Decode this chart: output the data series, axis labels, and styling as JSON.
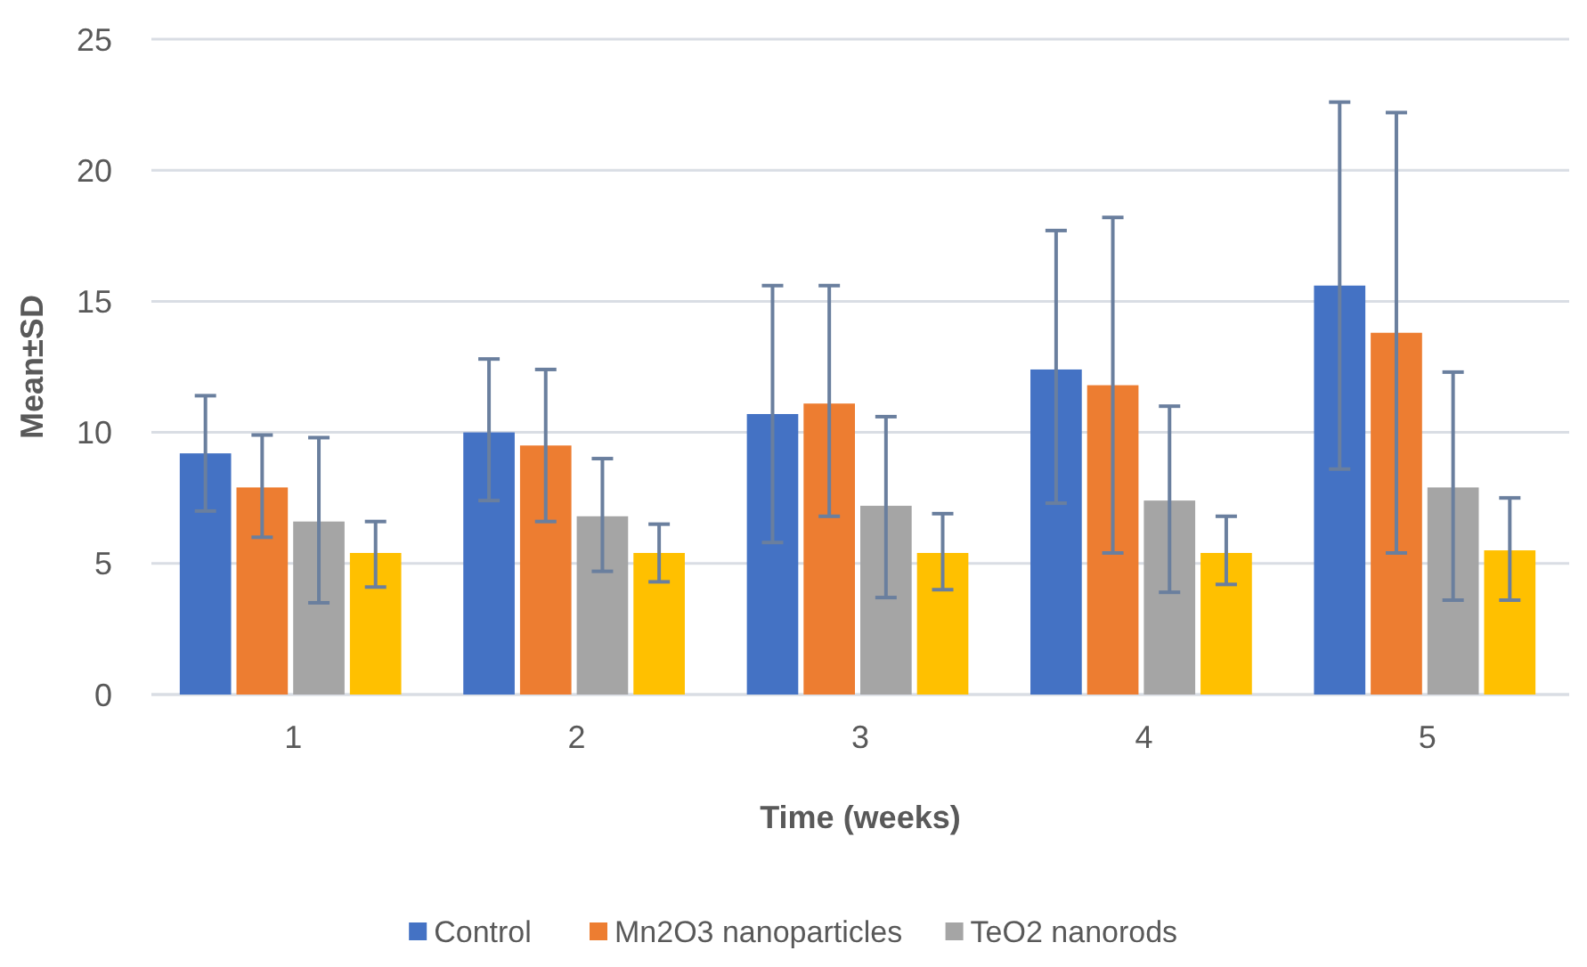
{
  "chart_data": {
    "type": "bar",
    "xlabel": "Time (weeks)",
    "ylabel": "Mean±SD",
    "categories": [
      "1",
      "2",
      "3",
      "4",
      "5"
    ],
    "series": [
      {
        "name": "Control",
        "color": "#4472c4",
        "values": [
          9.2,
          10.0,
          10.7,
          12.4,
          15.6
        ],
        "errors": [
          [
            7.0,
            11.4
          ],
          [
            7.4,
            12.8
          ],
          [
            5.8,
            15.6
          ],
          [
            7.3,
            17.7
          ],
          [
            8.6,
            22.6
          ]
        ]
      },
      {
        "name": "Mn2O3 nanoparticles",
        "color": "#ed7d31",
        "values": [
          7.9,
          9.5,
          11.1,
          11.8,
          13.8
        ],
        "errors": [
          [
            6.0,
            9.9
          ],
          [
            6.6,
            12.4
          ],
          [
            6.8,
            15.6
          ],
          [
            5.4,
            18.2
          ],
          [
            5.4,
            22.2
          ]
        ]
      },
      {
        "name": "TeO2 nanorods",
        "color": "#a5a5a5",
        "values": [
          6.6,
          6.8,
          7.2,
          7.4,
          7.9
        ],
        "errors": [
          [
            3.5,
            9.8
          ],
          [
            4.7,
            9.0
          ],
          [
            3.7,
            10.6
          ],
          [
            3.9,
            11.0
          ],
          [
            3.6,
            12.3
          ]
        ]
      },
      {
        "color": "#ffc000",
        "values": [
          5.4,
          5.4,
          5.4,
          5.4,
          5.5
        ],
        "errors": [
          [
            4.1,
            6.6
          ],
          [
            4.3,
            6.5
          ],
          [
            4.0,
            6.9
          ],
          [
            4.2,
            6.8
          ],
          [
            3.6,
            7.5
          ]
        ]
      }
    ],
    "ylim": [
      0,
      25
    ],
    "yticks": [
      0,
      5,
      10,
      15,
      20,
      25
    ],
    "grid": "y",
    "legend": "bottom"
  }
}
